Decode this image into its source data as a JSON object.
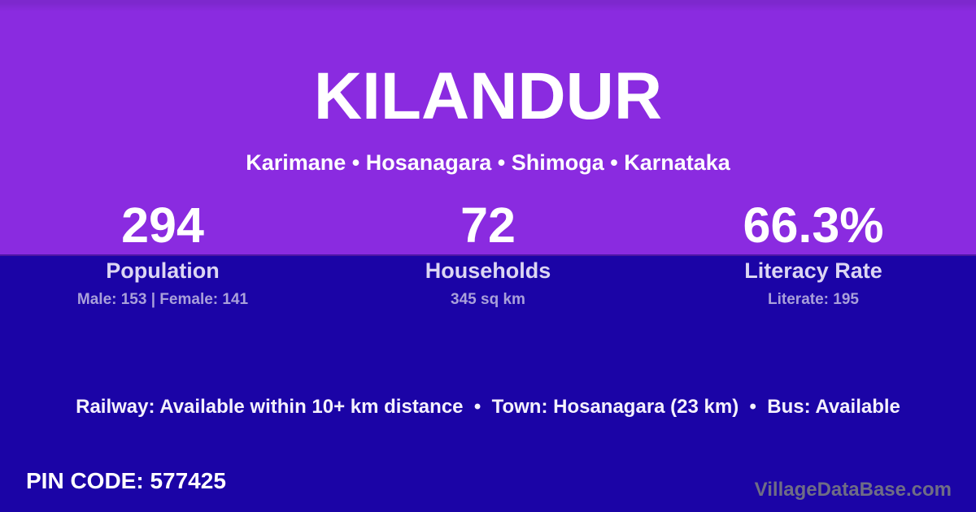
{
  "page": {
    "title": "KILANDUR",
    "breadcrumb": "Karimane • Hosanagara • Shimoga • Karnataka"
  },
  "stats": [
    {
      "value": "294",
      "label": "Population",
      "detail": "Male: 153 | Female: 141"
    },
    {
      "value": "72",
      "label": "Households",
      "detail": "345 sq km"
    },
    {
      "value": "66.3%",
      "label": "Literacy Rate",
      "detail": "Literate: 195"
    }
  ],
  "transport": {
    "text": "Railway: Available within 10+ km distance  •  Town: Hosanagara (23 km)  •  Bus: Available"
  },
  "footer": {
    "pin_code": "PIN CODE: 577425",
    "watermark": "VillageDataBase.com"
  },
  "colors": {
    "top_background": "#8a2be0",
    "bottom_background": "#1b04a6",
    "title_text": "#ffffff",
    "stat_value_text": "#ffffff",
    "stat_label_text": "#dcd6f3",
    "stat_detail_text": "#a9a0da",
    "transport_text": "#f4f1fc",
    "watermark_text": "#6f6d85"
  }
}
